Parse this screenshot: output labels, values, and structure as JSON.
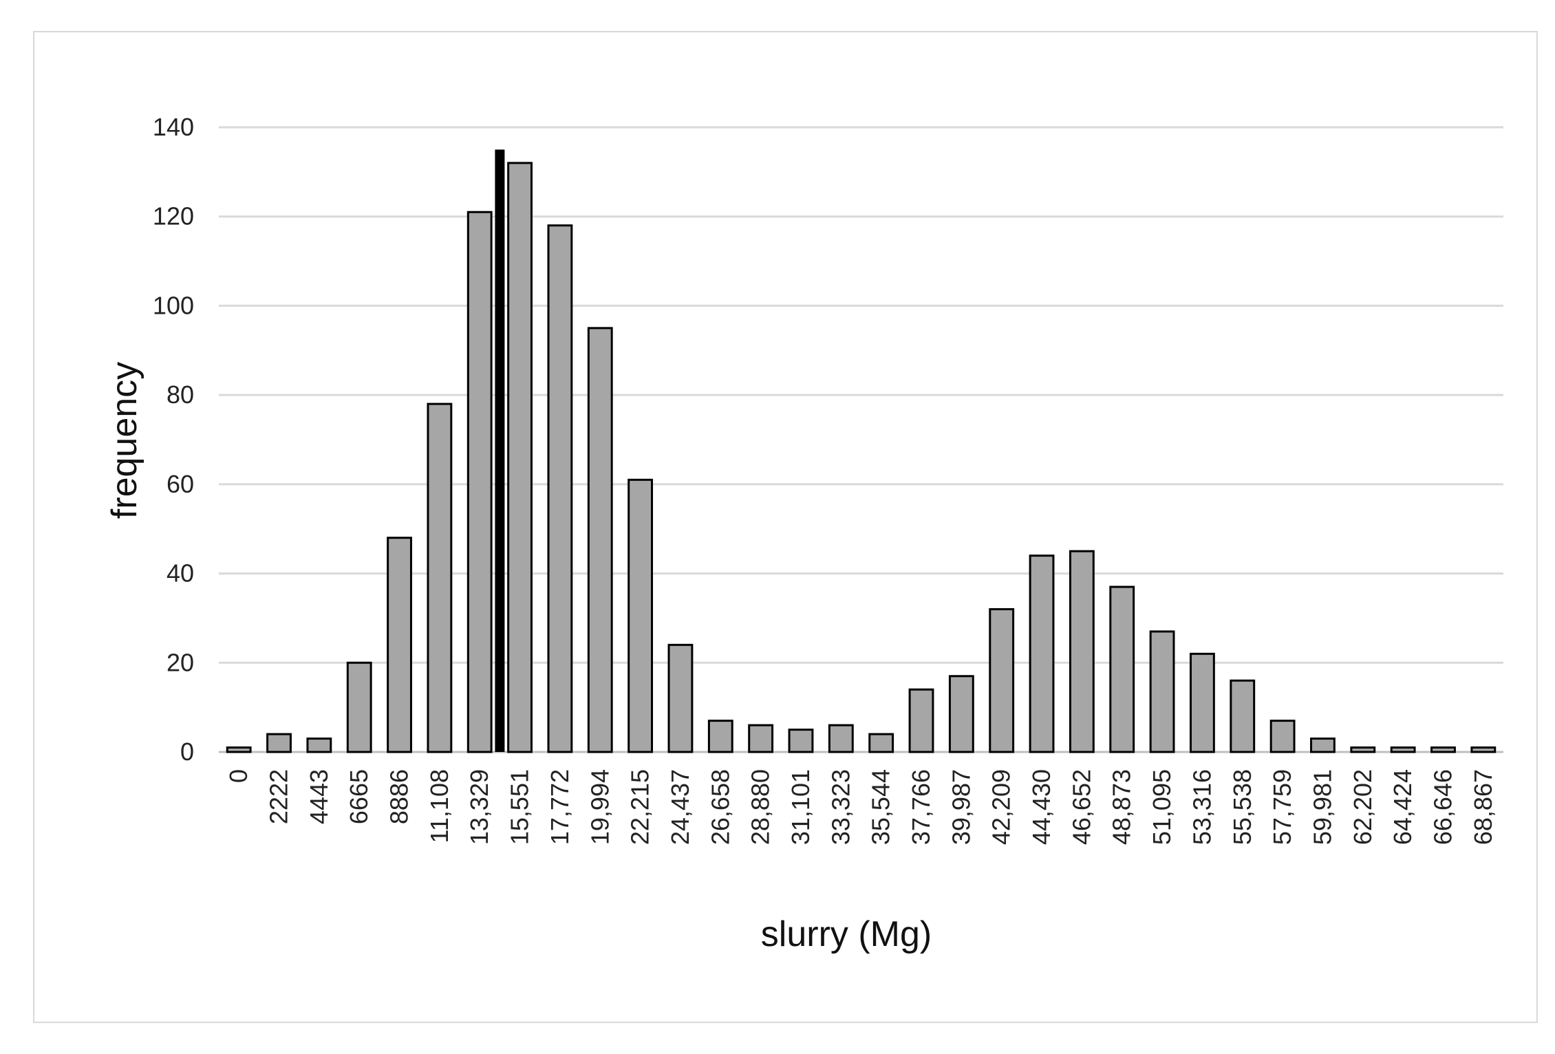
{
  "chart_data": {
    "type": "bar",
    "title": "",
    "xlabel": "slurry (Mg)",
    "ylabel": "frequency",
    "ylim": [
      0,
      140
    ],
    "yticks": [
      0,
      20,
      40,
      60,
      80,
      100,
      120,
      140
    ],
    "grid": true,
    "legend": "none",
    "categories": [
      "0",
      "2222",
      "4443",
      "6665",
      "8886",
      "11,108",
      "13,329",
      "15,551",
      "17,772",
      "19,994",
      "22,215",
      "24,437",
      "26,658",
      "28,880",
      "31,101",
      "33,323",
      "35,544",
      "37,766",
      "39,987",
      "42,209",
      "44,430",
      "46,652",
      "48,873",
      "51,095",
      "53,316",
      "55,538",
      "57,759",
      "59,981",
      "62,202",
      "64,424",
      "66,646",
      "68,867"
    ],
    "values": [
      1,
      4,
      3,
      20,
      48,
      78,
      121,
      132,
      118,
      95,
      61,
      24,
      7,
      6,
      5,
      6,
      4,
      14,
      17,
      32,
      44,
      45,
      37,
      27,
      22,
      16,
      7,
      3,
      1,
      1,
      1,
      1
    ],
    "marker": {
      "position_between": [
        "13,329",
        "15,551"
      ],
      "value": 135,
      "color": "#000000"
    },
    "colors": {
      "bar_fill": "#a6a6a6",
      "bar_stroke": "#000000",
      "grid": "#d9d9d9"
    }
  }
}
